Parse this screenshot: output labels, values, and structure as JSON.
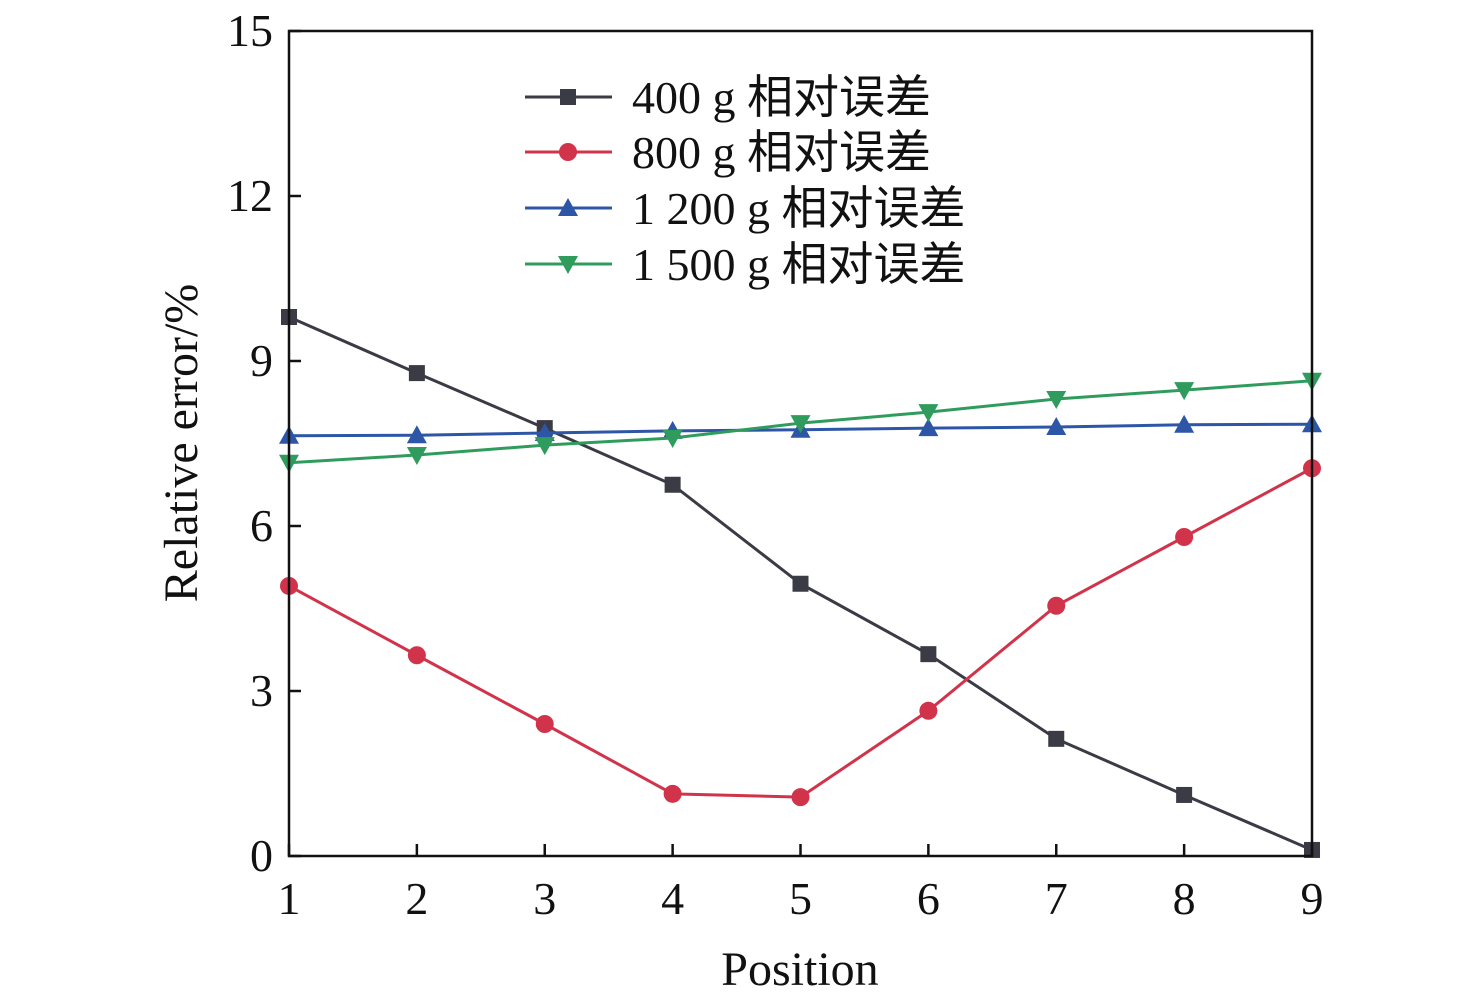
{
  "chart_data": {
    "type": "line",
    "title": "",
    "xlabel": "Position",
    "ylabel": "Relative error/%",
    "x": [
      1,
      2,
      3,
      4,
      5,
      6,
      7,
      8,
      9
    ],
    "xlim": [
      1,
      9
    ],
    "ylim": [
      0,
      15
    ],
    "xticks": [
      "1",
      "2",
      "3",
      "4",
      "5",
      "6",
      "7",
      "8",
      "9"
    ],
    "yticks": [
      "0",
      "3",
      "6",
      "9",
      "12",
      "15"
    ],
    "grid": false,
    "legend_position": "top-center",
    "series": [
      {
        "name": "400 g 相对误差",
        "marker": "square",
        "color": "#3b3b45",
        "values": [
          9.8,
          8.78,
          7.78,
          6.75,
          4.95,
          3.67,
          2.13,
          1.11,
          0.11
        ]
      },
      {
        "name": "800 g 相对误差",
        "marker": "circle",
        "color": "#d1344a",
        "values": [
          4.91,
          3.65,
          2.4,
          1.13,
          1.07,
          2.64,
          4.55,
          5.8,
          7.05
        ]
      },
      {
        "name": "1 200 g 相对误差",
        "marker": "triangle-up",
        "color": "#2e56a6",
        "values": [
          7.64,
          7.65,
          7.69,
          7.73,
          7.75,
          7.78,
          7.8,
          7.84,
          7.85
        ]
      },
      {
        "name": "1 500 g 相对误差",
        "marker": "triangle-down",
        "color": "#2f9c5d",
        "values": [
          7.15,
          7.29,
          7.47,
          7.6,
          7.87,
          8.07,
          8.31,
          8.47,
          8.64
        ]
      }
    ]
  }
}
